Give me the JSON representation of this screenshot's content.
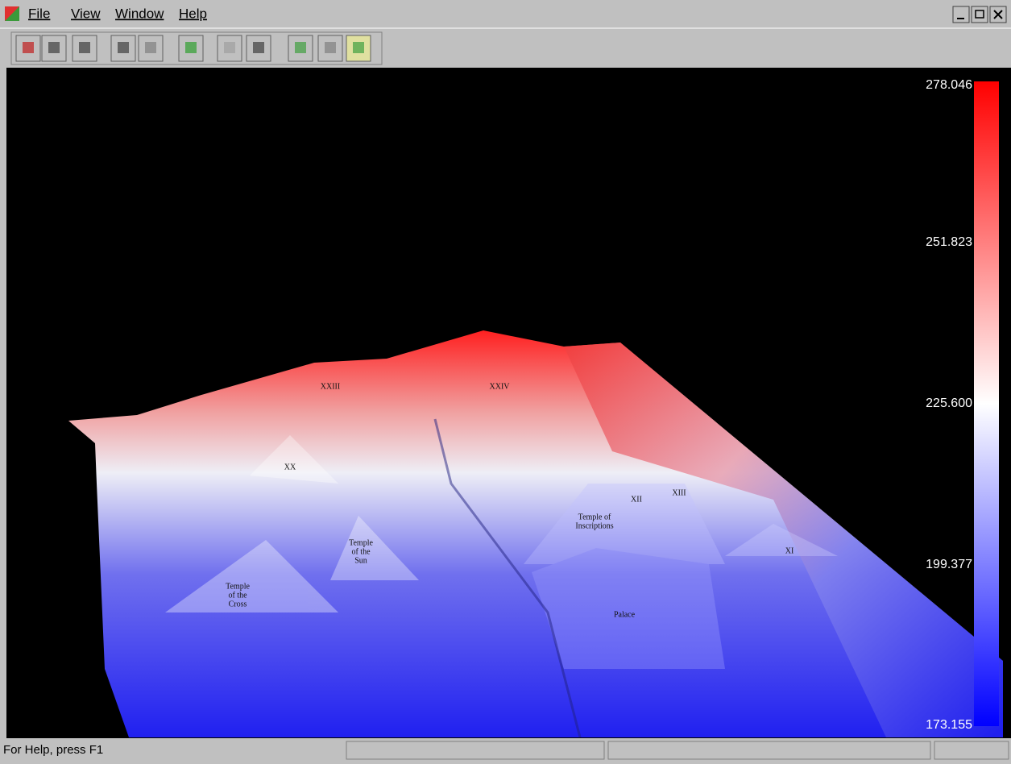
{
  "menu": [
    "File",
    "View",
    "Window",
    "Help"
  ],
  "color_scale": {
    "ticks": [
      {
        "value": 278.046,
        "label": "278.046"
      },
      {
        "value": 251.823,
        "label": "251.823"
      },
      {
        "value": 225.6,
        "label": "225.600"
      },
      {
        "value": 199.377,
        "label": "199.377"
      },
      {
        "value": 173.155,
        "label": "173.155"
      }
    ]
  },
  "terrain_labels": [
    {
      "lines": [
        "XXIII"
      ]
    },
    {
      "lines": [
        "XXIV"
      ]
    },
    {
      "lines": [
        "XX"
      ]
    },
    {
      "lines": [
        "XII"
      ]
    },
    {
      "lines": [
        "XIII"
      ]
    },
    {
      "lines": [
        "Temple of",
        "Inscriptions"
      ]
    },
    {
      "lines": [
        "Temple",
        "of the",
        "Sun"
      ]
    },
    {
      "lines": [
        "XI"
      ]
    },
    {
      "lines": [
        "Temple",
        "of the",
        "Cross"
      ]
    },
    {
      "lines": [
        "Palace"
      ]
    }
  ],
  "status_bar": {
    "text": "For Help, press F1"
  }
}
